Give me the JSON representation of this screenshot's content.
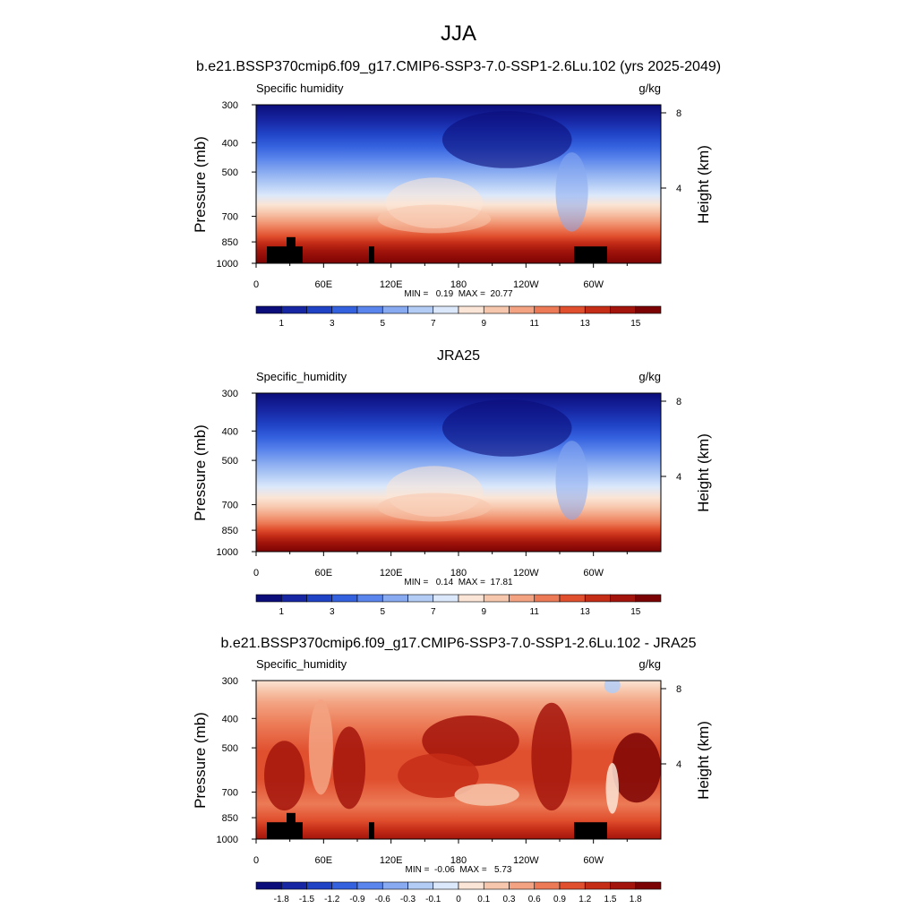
{
  "figure": {
    "title": "JJA"
  },
  "chart_data": [
    {
      "type": "heatmap",
      "panel_title": "b.e21.BSSP370cmip6.f09_g17.CMIP6-SSP3-7.0-SSP1-2.6Lu.102 (yrs 2025-2049)",
      "variable": "Specific humidity",
      "units": "g/kg",
      "xlabel": "",
      "ylabel": "Pressure (mb)",
      "y2label": "Height (km)",
      "x_ticks": [
        "0",
        "60E",
        "120E",
        "180",
        "120W",
        "60W"
      ],
      "y_ticks": [
        "300",
        "400",
        "500",
        "700",
        "850",
        "1000"
      ],
      "y2_ticks": [
        "8",
        "4"
      ],
      "stats": "MIN =   0.19  MAX =  20.77",
      "min": 0.19,
      "max": 20.77,
      "colorbar_labels": [
        "1",
        "3",
        "5",
        "7",
        "9",
        "11",
        "13",
        "15"
      ],
      "colors": [
        "#0b0d7a",
        "#1727a4",
        "#2043c6",
        "#3461de",
        "#5a85ec",
        "#88aaf0",
        "#b3ccf6",
        "#dbe8fb",
        "#fbe5d6",
        "#f7c7ad",
        "#f3a382",
        "#ec7a56",
        "#e04f2e",
        "#c52d17",
        "#a3150c",
        "#7c0303"
      ]
    },
    {
      "type": "heatmap",
      "panel_title": "JRA25",
      "variable": "Specific_humidity",
      "units": "g/kg",
      "xlabel": "",
      "ylabel": "Pressure (mb)",
      "y2label": "Height (km)",
      "x_ticks": [
        "0",
        "60E",
        "120E",
        "180",
        "120W",
        "60W"
      ],
      "y_ticks": [
        "300",
        "400",
        "500",
        "700",
        "850",
        "1000"
      ],
      "y2_ticks": [
        "8",
        "4"
      ],
      "stats": "MIN =   0.14  MAX =  17.81",
      "min": 0.14,
      "max": 17.81,
      "colorbar_labels": [
        "1",
        "3",
        "5",
        "7",
        "9",
        "11",
        "13",
        "15"
      ],
      "colors": [
        "#0b0d7a",
        "#1727a4",
        "#2043c6",
        "#3461de",
        "#5a85ec",
        "#88aaf0",
        "#b3ccf6",
        "#dbe8fb",
        "#fbe5d6",
        "#f7c7ad",
        "#f3a382",
        "#ec7a56",
        "#e04f2e",
        "#c52d17",
        "#a3150c",
        "#7c0303"
      ]
    },
    {
      "type": "heatmap",
      "panel_title": "b.e21.BSSP370cmip6.f09_g17.CMIP6-SSP3-7.0-SSP1-2.6Lu.102 - JRA25",
      "variable": "Specific_humidity",
      "units": "g/kg",
      "xlabel": "",
      "ylabel": "Pressure (mb)",
      "y2label": "Height (km)",
      "x_ticks": [
        "0",
        "60E",
        "120E",
        "180",
        "120W",
        "60W"
      ],
      "y_ticks": [
        "300",
        "400",
        "500",
        "700",
        "850",
        "1000"
      ],
      "y2_ticks": [
        "8",
        "4"
      ],
      "stats": "MIN =  -0.06  MAX =   5.73",
      "min": -0.06,
      "max": 5.73,
      "colorbar_labels": [
        "-1.8",
        "-1.5",
        "-1.2",
        "-0.9",
        "-0.6",
        "-0.3",
        "-0.1",
        "0",
        "0.1",
        "0.3",
        "0.6",
        "0.9",
        "1.2",
        "1.5",
        "1.8"
      ],
      "colors": [
        "#0b0d7a",
        "#1727a4",
        "#2043c6",
        "#3461de",
        "#5a85ec",
        "#88aaf0",
        "#b3ccf6",
        "#dbe8fb",
        "#fbe5d6",
        "#f7c7ad",
        "#f3a382",
        "#ec7a56",
        "#e04f2e",
        "#c52d17",
        "#a3150c",
        "#7c0303"
      ]
    }
  ]
}
